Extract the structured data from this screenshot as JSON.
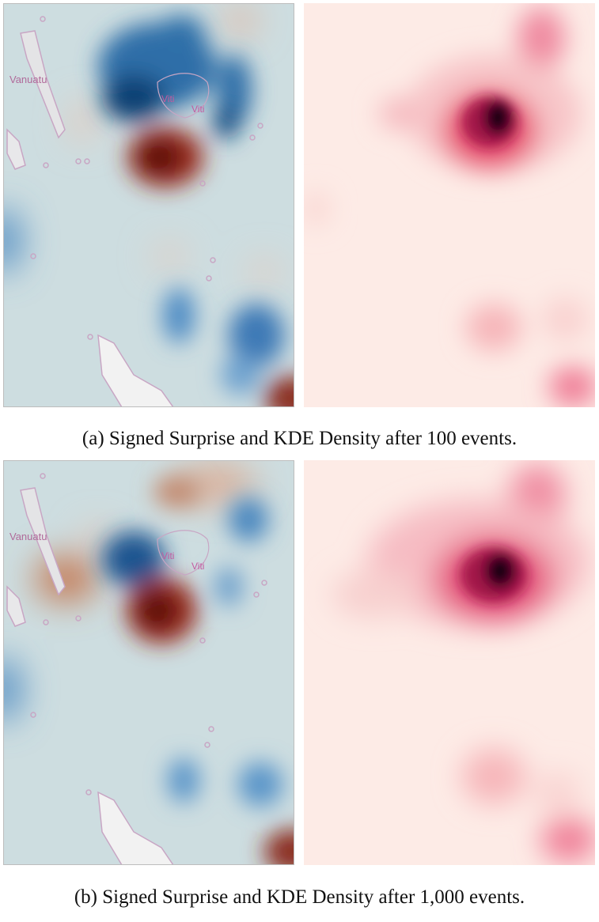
{
  "figures": [
    {
      "caption": "(a) Signed Surprise and KDE Density after 100 events.",
      "surprise_map": {
        "labels": {
          "vanuatu": "Vanuatu",
          "viti_1": "Viti",
          "viti_2": "Viti"
        }
      },
      "density_map": {}
    },
    {
      "caption": "(b) Signed Surprise and KDE Density after 1,000 events.",
      "surprise_map": {
        "labels": {
          "vanuatu": "Vanuatu",
          "viti_1": "Viti",
          "viti_2": "Viti"
        }
      },
      "density_map": {}
    }
  ],
  "colors": {
    "surprise_background": "#cddde0",
    "positive_surprise": "#6b0f0f",
    "negative_surprise": "#0d3f73",
    "density_background": "#fdebe6",
    "density_peak": "#1a0016",
    "land_outline": "#c8a6c4",
    "land_fill": "#f2f2f2"
  }
}
